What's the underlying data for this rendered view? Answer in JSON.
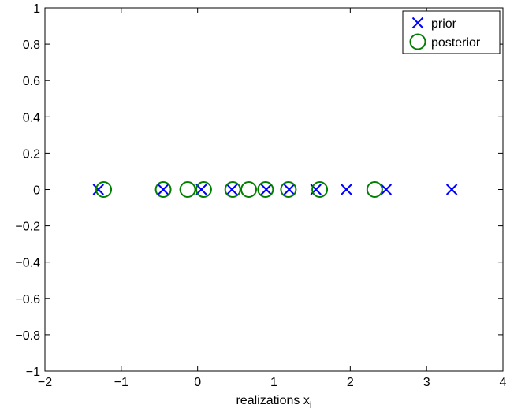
{
  "chart_data": {
    "type": "scatter",
    "title": "",
    "xlabel": "realizations x",
    "xlabel_subscript": "i",
    "ylabel": "",
    "xlim": [
      -2,
      4
    ],
    "ylim": [
      -1,
      1
    ],
    "grid": false,
    "legend_position": "top-right",
    "x_ticks": [
      -2,
      -1,
      0,
      1,
      2,
      3,
      4
    ],
    "x_tick_labels": [
      "−2",
      "−1",
      "0",
      "1",
      "2",
      "3",
      "4"
    ],
    "y_ticks": [
      -1,
      -0.8,
      -0.6,
      -0.4,
      -0.2,
      0,
      0.2,
      0.4,
      0.6,
      0.8,
      1
    ],
    "y_tick_labels": [
      "−1",
      "−0.8",
      "−0.6",
      "−0.4",
      "−0.2",
      "0",
      "0.2",
      "0.4",
      "0.6",
      "0.8",
      "1"
    ],
    "series": [
      {
        "name": "prior",
        "marker": "x",
        "color": "#0000ff",
        "points": [
          {
            "x": -1.3,
            "y": 0
          },
          {
            "x": -0.45,
            "y": 0
          },
          {
            "x": 0.05,
            "y": 0
          },
          {
            "x": 0.45,
            "y": 0
          },
          {
            "x": 0.9,
            "y": 0
          },
          {
            "x": 1.2,
            "y": 0
          },
          {
            "x": 1.55,
            "y": 0
          },
          {
            "x": 1.95,
            "y": 0
          },
          {
            "x": 2.47,
            "y": 0
          },
          {
            "x": 3.33,
            "y": 0
          }
        ]
      },
      {
        "name": "posterior",
        "marker": "o",
        "color": "#007f00",
        "points": [
          {
            "x": -1.23,
            "y": 0
          },
          {
            "x": -0.45,
            "y": 0
          },
          {
            "x": -0.13,
            "y": 0
          },
          {
            "x": 0.08,
            "y": 0
          },
          {
            "x": 0.46,
            "y": 0
          },
          {
            "x": 0.67,
            "y": 0
          },
          {
            "x": 0.89,
            "y": 0
          },
          {
            "x": 1.19,
            "y": 0
          },
          {
            "x": 1.6,
            "y": 0
          },
          {
            "x": 2.32,
            "y": 0
          }
        ]
      }
    ]
  }
}
